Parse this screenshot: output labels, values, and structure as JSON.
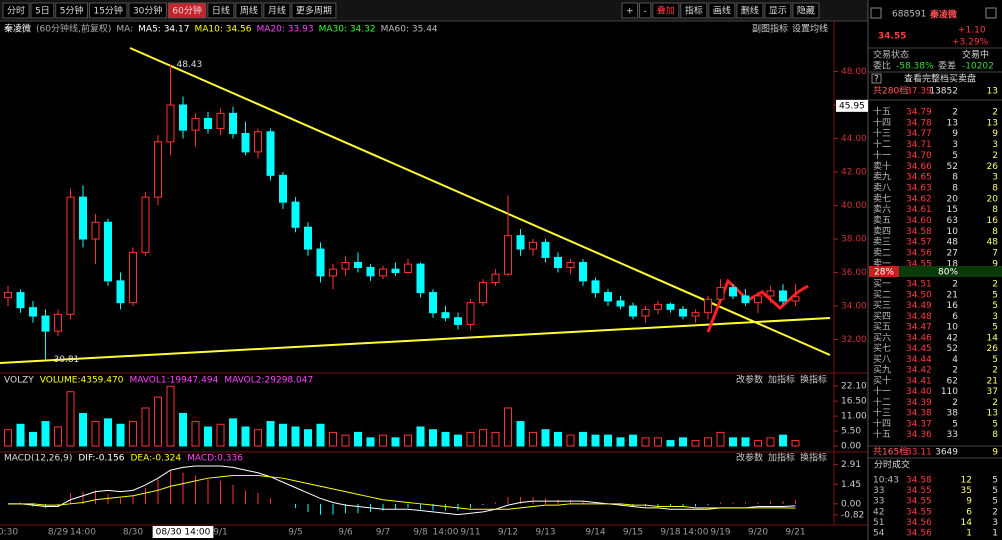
{
  "toolbar": {
    "periods": [
      "分时",
      "5日",
      "5分钟",
      "15分钟",
      "30分钟",
      "60分钟",
      "日线",
      "周线",
      "月线",
      "更多周期"
    ],
    "active": 5,
    "tools": [
      "+",
      "-",
      "叠加",
      "指标",
      "画线",
      "删线",
      "显示",
      "隐藏"
    ]
  },
  "chart_header": {
    "name": "秦凌微",
    "period": "(60分钟线,前复权)",
    "ma_label": "MA:",
    "ma": [
      {
        "text": "MA5: 34.17",
        "color": "#ffffff"
      },
      {
        "text": "MA10: 34.56",
        "color": "#ffff00"
      },
      {
        "text": "MA20: 33.93",
        "color": "#ff44ff"
      },
      {
        "text": "MA30: 34.32",
        "color": "#33ff33"
      },
      {
        "text": "MA60: 35.44",
        "color": "#bbbbbb"
      }
    ],
    "buttons": [
      "副图指标",
      "设置均线"
    ]
  },
  "chart_data": [
    {
      "type": "candlestick",
      "categories": [
        "0:30",
        null,
        null,
        null,
        "8/29",
        null,
        "14:00",
        null,
        null,
        null,
        "8/30",
        null,
        null,
        null,
        "08/30 14:00",
        null,
        null,
        "9/1",
        null,
        null,
        null,
        null,
        null,
        "9/5",
        null,
        null,
        null,
        "9/6",
        null,
        null,
        "9/7",
        null,
        null,
        "9/8",
        null,
        "14:00",
        null,
        "9/11",
        null,
        null,
        "9/12",
        null,
        null,
        "9/13",
        null,
        null,
        null,
        "9/14",
        null,
        null,
        "9/15",
        null,
        null,
        "9/18",
        null,
        "14:00",
        null,
        "9/19",
        null,
        null,
        "9/20",
        null,
        null,
        "9/21"
      ],
      "open": [
        34.5,
        34.8,
        33.9,
        33.4,
        32.5,
        33.5,
        40.5,
        38.0,
        39.0,
        35.5,
        34.2,
        37.2,
        40.5,
        43.8,
        46.0,
        44.5,
        45.2,
        44.6,
        45.5,
        44.3,
        43.2,
        44.4,
        41.8,
        40.2,
        38.7,
        37.4,
        35.8,
        36.2,
        36.6,
        36.3,
        35.8,
        36.2,
        36.0,
        36.5,
        34.8,
        33.6,
        33.3,
        32.9,
        34.2,
        35.4,
        35.9,
        38.2,
        37.4,
        37.8,
        36.9,
        36.3,
        36.6,
        35.5,
        34.8,
        34.3,
        34.0,
        33.4,
        33.8,
        34.1,
        33.8,
        33.4,
        33.6,
        34.4,
        35.1,
        34.6,
        34.2,
        34.6,
        34.9,
        34.3
      ],
      "high": [
        35.2,
        35.0,
        34.3,
        33.8,
        33.8,
        41.0,
        41.2,
        39.5,
        39.2,
        36.0,
        37.5,
        40.8,
        44.2,
        48.43,
        46.5,
        45.5,
        45.6,
        45.8,
        45.9,
        45.0,
        44.6,
        44.6,
        42.0,
        40.5,
        39.0,
        37.8,
        36.5,
        37.0,
        37.2,
        36.5,
        36.4,
        36.6,
        36.8,
        36.6,
        35.0,
        34.0,
        33.6,
        34.4,
        35.6,
        36.2,
        40.6,
        38.6,
        38.0,
        38.0,
        37.2,
        36.8,
        36.8,
        35.7,
        35.0,
        34.6,
        34.2,
        34.0,
        34.3,
        34.2,
        34.0,
        33.8,
        34.6,
        35.6,
        35.3,
        35.0,
        34.8,
        35.2,
        35.3,
        35.3
      ],
      "low": [
        34.0,
        33.6,
        33.0,
        30.81,
        32.2,
        33.2,
        37.5,
        36.5,
        35.2,
        33.8,
        34.0,
        37.0,
        40.0,
        43.0,
        44.0,
        43.5,
        44.3,
        44.2,
        44.0,
        43.0,
        42.8,
        41.5,
        39.8,
        38.4,
        37.0,
        35.4,
        35.0,
        35.8,
        36.0,
        35.5,
        35.6,
        35.8,
        35.9,
        34.5,
        33.3,
        33.1,
        32.6,
        32.6,
        34.0,
        35.2,
        35.8,
        37.0,
        37.0,
        36.6,
        36.0,
        35.9,
        35.2,
        34.5,
        34.0,
        33.8,
        33.2,
        33.0,
        33.5,
        33.6,
        33.2,
        33.0,
        33.2,
        34.2,
        34.4,
        34.0,
        33.6,
        34.2,
        34.1,
        34.0
      ],
      "close": [
        34.8,
        33.9,
        33.4,
        32.5,
        33.5,
        40.5,
        38.0,
        39.0,
        35.5,
        34.2,
        37.2,
        40.5,
        43.8,
        46.0,
        44.5,
        45.2,
        44.6,
        45.5,
        44.3,
        43.2,
        44.4,
        41.8,
        40.2,
        38.7,
        37.4,
        35.8,
        36.2,
        36.6,
        36.3,
        35.8,
        36.2,
        36.0,
        36.5,
        34.8,
        33.6,
        33.3,
        32.9,
        34.2,
        35.4,
        35.9,
        38.2,
        37.4,
        37.8,
        36.9,
        36.3,
        36.6,
        35.5,
        34.8,
        34.3,
        34.0,
        33.4,
        33.8,
        34.1,
        33.8,
        33.4,
        33.6,
        34.4,
        35.1,
        34.6,
        34.2,
        34.6,
        34.9,
        34.3,
        34.55
      ],
      "up_color": "#ff3232",
      "down_color": "#00ffff",
      "ylim": [
        30,
        50
      ],
      "yticks": [
        {
          "value": 32,
          "label": "32.00"
        },
        {
          "value": 34,
          "label": "34.00"
        },
        {
          "value": 36,
          "label": "36.00"
        },
        {
          "value": 38,
          "label": "38.00"
        },
        {
          "value": 40,
          "label": "40.00"
        },
        {
          "value": 42,
          "label": "42.00"
        },
        {
          "value": 44,
          "label": "44.00"
        },
        {
          "value": 46,
          "label": "46.00"
        },
        {
          "value": 48,
          "label": "48.00"
        }
      ],
      "max_label": 48.43,
      "min_label": 30.81,
      "cursor_value": 45.95,
      "cursor_index": 14
    },
    {
      "type": "bar",
      "legend": [
        "VOLZY",
        "VOLUME:4359.470",
        "MAVOL1:19947.494",
        "MAVOL2:29298.047"
      ],
      "legend_colors": [
        "#dddddd",
        "#ffff00",
        "#ff44ff",
        "#ff44ff"
      ],
      "values": [
        6,
        8,
        5,
        9,
        7,
        20,
        12,
        9,
        10,
        8,
        9,
        14,
        18,
        22,
        12,
        9,
        7,
        8,
        10,
        7,
        6,
        9,
        8,
        7,
        6,
        8,
        5,
        4,
        5,
        3,
        4,
        3,
        4,
        7,
        6,
        5,
        4,
        5,
        6,
        5,
        14,
        9,
        5,
        6,
        5,
        4,
        5,
        4,
        4,
        3,
        4,
        3,
        3,
        2,
        3,
        2,
        3,
        5,
        3,
        3,
        2,
        3,
        4,
        2
      ],
      "ylim": [
        0,
        22.1
      ],
      "yticks": [
        {
          "value": 0,
          "label": "0.00"
        },
        {
          "value": 5.5,
          "label": "5.50"
        },
        {
          "value": 11,
          "label": "11.00"
        },
        {
          "value": 16.5,
          "label": "16.50"
        },
        {
          "value": 22.1,
          "label": "22.10"
        }
      ],
      "buttons": [
        "改参数",
        "加指标",
        "换指标"
      ]
    },
    {
      "type": "macd",
      "legend": [
        "MACD(12,26,9)",
        "DIF:-0.156",
        "DEA:-0.324",
        "MACD:0.336"
      ],
      "legend_colors": [
        "#dddddd",
        "#ffffff",
        "#ffff00",
        "#ff44ff"
      ],
      "values": [
        0,
        0.1,
        -0.2,
        -0.3,
        -0.1,
        0.8,
        0.9,
        1.0,
        0.7,
        0.4,
        0.6,
        1.2,
        1.8,
        2.5,
        2.3,
        2.1,
        1.8,
        1.7,
        1.4,
        1.0,
        0.8,
        0.4,
        0,
        -0.3,
        -0.6,
        -0.8,
        -0.8,
        -0.7,
        -0.7,
        -0.6,
        -0.5,
        -0.4,
        -0.3,
        -0.4,
        -0.5,
        -0.5,
        -0.5,
        -0.3,
        -0.1,
        0.1,
        0.5,
        0.5,
        0.5,
        0.4,
        0.3,
        0.3,
        0.2,
        0.1,
        0,
        -0.1,
        -0.2,
        -0.2,
        -0.2,
        -0.2,
        -0.2,
        -0.2,
        -0.1,
        0.1,
        0.1,
        0.1,
        0.1,
        0.2,
        0.2,
        0.3
      ],
      "dif": [
        0,
        0,
        -0.1,
        -0.2,
        -0.2,
        0.3,
        0.6,
        0.9,
        1.0,
        0.9,
        1.0,
        1.4,
        1.9,
        2.5,
        2.7,
        2.8,
        2.8,
        2.8,
        2.7,
        2.5,
        2.3,
        2.0,
        1.6,
        1.2,
        0.8,
        0.4,
        0.1,
        -0.1,
        -0.2,
        -0.3,
        -0.4,
        -0.4,
        -0.4,
        -0.5,
        -0.6,
        -0.7,
        -0.8,
        -0.7,
        -0.6,
        -0.4,
        -0.1,
        0.1,
        0.2,
        0.2,
        0.2,
        0.2,
        0.2,
        0.1,
        0,
        -0.1,
        -0.2,
        -0.3,
        -0.3,
        -0.4,
        -0.4,
        -0.4,
        -0.4,
        -0.3,
        -0.3,
        -0.3,
        -0.2,
        -0.2,
        -0.2,
        -0.156
      ],
      "dea": [
        0,
        0,
        0,
        -0.1,
        -0.1,
        0,
        0.1,
        0.3,
        0.4,
        0.5,
        0.6,
        0.8,
        1.0,
        1.3,
        1.5,
        1.7,
        1.9,
        2.0,
        2.1,
        2.1,
        2.1,
        2.0,
        1.9,
        1.7,
        1.5,
        1.3,
        1.1,
        0.9,
        0.7,
        0.5,
        0.3,
        0.2,
        0.1,
        0,
        -0.1,
        -0.2,
        -0.3,
        -0.4,
        -0.4,
        -0.4,
        -0.4,
        -0.3,
        -0.2,
        -0.1,
        -0.1,
        0,
        0,
        0,
        0,
        0,
        -0.1,
        -0.1,
        -0.2,
        -0.2,
        -0.2,
        -0.3,
        -0.3,
        -0.3,
        -0.3,
        -0.3,
        -0.3,
        -0.3,
        -0.3,
        -0.324
      ],
      "ylim": [
        -1.2,
        3.1
      ],
      "yticks": [
        {
          "value": -0.82,
          "label": "-0.82"
        },
        {
          "value": 0,
          "label": "0.00"
        },
        {
          "value": 1.45,
          "label": "1.45"
        },
        {
          "value": 2.91,
          "label": "2.91"
        }
      ],
      "buttons": [
        "改参数",
        "加指标",
        "换指标"
      ]
    }
  ],
  "quote": {
    "code": "688591",
    "name": "秦凌微",
    "price": "34.55",
    "change": "+1.10",
    "pct": "+3.29%",
    "status_label": "交易状态",
    "status": "交易中",
    "ratio_label": "委比",
    "ratio": "-58.38%",
    "diff_label": "委差",
    "diff": "-10202",
    "help": "?",
    "full_book": "查看完整档买卖盘",
    "sell_total": [
      "共280档",
      "37.39",
      "13852",
      "13"
    ],
    "sells": [
      [
        "十五",
        "34.79",
        "2",
        "2"
      ],
      [
        "十四",
        "34.78",
        "13",
        "13"
      ],
      [
        "十三",
        "34.77",
        "9",
        "9"
      ],
      [
        "十二",
        "34.71",
        "3",
        "3"
      ],
      [
        "十一",
        "34.70",
        "5",
        "2"
      ],
      [
        "卖十",
        "34.66",
        "52",
        "26"
      ],
      [
        "卖九",
        "34.65",
        "8",
        "3"
      ],
      [
        "卖八",
        "34.63",
        "8",
        "8"
      ],
      [
        "卖七",
        "34.62",
        "20",
        "20"
      ],
      [
        "卖六",
        "34.61",
        "15",
        "8"
      ],
      [
        "卖五",
        "34.60",
        "63",
        "16"
      ],
      [
        "卖四",
        "34.58",
        "10",
        "8"
      ],
      [
        "卖三",
        "34.57",
        "48",
        "48"
      ],
      [
        "卖二",
        "34.56",
        "27",
        "7"
      ],
      [
        "卖一",
        "34.55",
        "18",
        "9"
      ]
    ],
    "bar": [
      "28%",
      "80%"
    ],
    "buys": [
      [
        "买一",
        "34.51",
        "2",
        "2"
      ],
      [
        "买二",
        "34.50",
        "21",
        "5"
      ],
      [
        "买三",
        "34.49",
        "16",
        "5"
      ],
      [
        "买四",
        "34.48",
        "6",
        "3"
      ],
      [
        "买五",
        "34.47",
        "10",
        "5"
      ],
      [
        "买六",
        "34.46",
        "42",
        "14"
      ],
      [
        "买七",
        "34.45",
        "52",
        "26"
      ],
      [
        "买八",
        "34.44",
        "4",
        "5"
      ],
      [
        "买九",
        "34.42",
        "2",
        "2"
      ],
      [
        "买十",
        "34.41",
        "62",
        "21"
      ],
      [
        "十一",
        "34.40",
        "110",
        "37"
      ],
      [
        "十二",
        "34.39",
        "2",
        "2"
      ],
      [
        "十三",
        "34.38",
        "38",
        "13"
      ],
      [
        "十四",
        "34.37",
        "5",
        "5"
      ],
      [
        "十五",
        "34.36",
        "33",
        "8"
      ]
    ],
    "buy_total": [
      "共165档",
      "33.11",
      "3649",
      "9"
    ],
    "trades_title": "分时成交",
    "trades": [
      [
        "10:43",
        "34.58",
        "12",
        "5"
      ],
      [
        "33",
        "34.55",
        "35",
        "5"
      ],
      [
        "33",
        "34.55",
        "9",
        "5"
      ],
      [
        "42",
        "34.55",
        "6",
        "2"
      ],
      [
        "51",
        "34.56",
        "14",
        "3"
      ],
      [
        "54",
        "34.56",
        "1",
        "1"
      ]
    ]
  }
}
